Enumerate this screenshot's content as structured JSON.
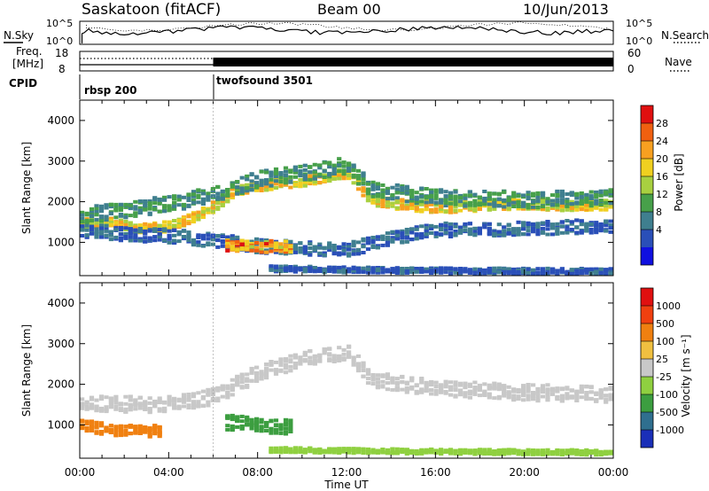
{
  "header": {
    "station": "Saskatoon (fitACF)",
    "beam": "Beam 00",
    "date": "10/Jun/2013"
  },
  "noise_panel": {
    "left_label": "N.Sky",
    "left_ticks": [
      "10^5",
      "10^0"
    ],
    "right_ticks": [
      "10^5",
      "10^0"
    ],
    "right_label": "N.Search"
  },
  "freq_panel": {
    "left_label_line1": "Freq.",
    "left_label_line2": "[MHz]",
    "left_ticks": [
      "18",
      "8"
    ],
    "right_ticks": [
      "60",
      "0"
    ],
    "right_label": "Nave"
  },
  "cpid": {
    "label": "CPID",
    "programs": [
      {
        "name": "rbsp 200",
        "start_hour": 0
      },
      {
        "name": "twofsound 3501",
        "start_hour": 6
      }
    ]
  },
  "time_axis": {
    "label": "Time UT",
    "ticks": [
      "00:00",
      "04:00",
      "08:00",
      "12:00",
      "16:00",
      "20:00",
      "00:00"
    ]
  },
  "chart_data": [
    {
      "type": "heatmap",
      "panel": "power",
      "xlabel": "Time UT",
      "ylabel": "Slant Range [km]",
      "x_hours": [
        0,
        24
      ],
      "ylim": [
        180,
        4500
      ],
      "yticks": [
        "1000",
        "2000",
        "3000",
        "4000"
      ],
      "colorbar": {
        "label": "Power [dB]",
        "ticks": [
          "4",
          "8",
          "12",
          "16",
          "20",
          "24",
          "28"
        ],
        "colors": [
          "#1010e0",
          "#2a4fb8",
          "#3f7f8f",
          "#47a04a",
          "#a8d040",
          "#f0d020",
          "#f8a020",
          "#f06010",
          "#e01010"
        ]
      },
      "bands": [
        {
          "points": [
            [
              0,
              1450
            ],
            [
              1,
              1500
            ],
            [
              2,
              1420
            ],
            [
              3,
              1330
            ],
            [
              4,
              1400
            ],
            [
              5,
              1600
            ],
            [
              6,
              1900
            ],
            [
              7,
              2300
            ],
            [
              8,
              2400
            ],
            [
              9,
              2450
            ],
            [
              10,
              2500
            ],
            [
              11,
              2600
            ],
            [
              12,
              2700
            ],
            [
              13,
              2050
            ],
            [
              14,
              1950
            ],
            [
              16,
              1850
            ],
            [
              18,
              1900
            ],
            [
              20,
              1950
            ],
            [
              22,
              1900
            ],
            [
              24,
              1900
            ]
          ],
          "value": 24,
          "spread": 130
        },
        {
          "points": [
            [
              0,
              1650
            ],
            [
              2,
              1800
            ],
            [
              4,
              1950
            ],
            [
              6,
              2200
            ],
            [
              8,
              2550
            ],
            [
              10,
              2700
            ],
            [
              12,
              2900
            ],
            [
              13,
              2300
            ],
            [
              16,
              2100
            ],
            [
              20,
              2050
            ],
            [
              24,
              2100
            ]
          ],
          "value": 14,
          "spread": 200
        },
        {
          "points": [
            [
              0,
              1300
            ],
            [
              2,
              1200
            ],
            [
              4,
              1150
            ],
            [
              6,
              1050
            ],
            [
              8,
              900
            ],
            [
              10,
              850
            ],
            [
              12,
              820
            ],
            [
              14,
              1100
            ],
            [
              16,
              1300
            ],
            [
              20,
              1350
            ],
            [
              24,
              1400
            ]
          ],
          "value": 10,
          "spread": 170
        },
        {
          "points": [
            [
              7,
              920
            ],
            [
              8,
              890
            ],
            [
              9,
              900
            ]
          ],
          "value": 28,
          "spread": 140
        },
        {
          "points": [
            [
              9,
              350
            ],
            [
              11,
              330
            ],
            [
              12,
              320
            ],
            [
              16,
              300
            ],
            [
              24,
              280
            ]
          ],
          "value": 9,
          "spread": 70
        }
      ]
    },
    {
      "type": "heatmap",
      "panel": "velocity",
      "xlabel": "Time UT",
      "ylabel": "Slant Range [km]",
      "x_hours": [
        0,
        24
      ],
      "ylim": [
        180,
        4500
      ],
      "yticks": [
        "1000",
        "2000",
        "3000",
        "4000"
      ],
      "colorbar": {
        "label": "Velocity [m s⁻¹]",
        "ticks": [
          "1000",
          "500",
          "100",
          "25",
          "-25",
          "-100",
          "-500",
          "-1000"
        ],
        "colors": [
          "#1a2fb8",
          "#2f6f8f",
          "#3c9e40",
          "#8fd040",
          "#c8c8c8",
          "#f0c040",
          "#f08010",
          "#f04010",
          "#e01010"
        ]
      },
      "bands": [
        {
          "points": [
            [
              0,
              1550
            ],
            [
              2,
              1500
            ],
            [
              4,
              1500
            ],
            [
              6,
              1700
            ],
            [
              8,
              2300
            ],
            [
              10,
              2600
            ],
            [
              12,
              2800
            ],
            [
              13,
              2100
            ],
            [
              16,
              1900
            ],
            [
              20,
              1800
            ],
            [
              24,
              1750
            ]
          ],
          "value": 0,
          "spread": 200
        },
        {
          "points": [
            [
              0,
              1000
            ],
            [
              1,
              900
            ],
            [
              2,
              850
            ],
            [
              3,
              850
            ]
          ],
          "value": -300,
          "spread": 140
        },
        {
          "points": [
            [
              7,
              1050
            ],
            [
              8,
              1000
            ],
            [
              9,
              950
            ]
          ],
          "value": 150,
          "spread": 180
        },
        {
          "points": [
            [
              9,
              380
            ],
            [
              12,
              360
            ],
            [
              16,
              340
            ],
            [
              24,
              320
            ]
          ],
          "value": 60,
          "spread": 60
        }
      ]
    }
  ]
}
